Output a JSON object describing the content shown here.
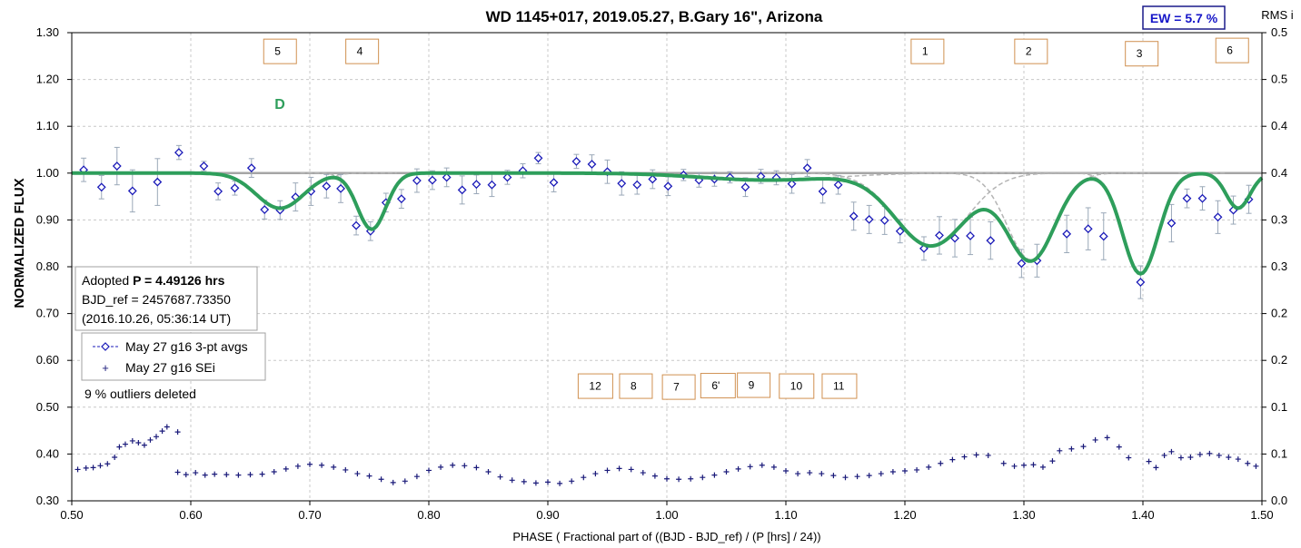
{
  "chart_data": {
    "type": "scatter",
    "title": "WD 1145+017, 2019.05.27, B.Gary 16\", Arizona",
    "xlabel": "PHASE ( Fractional part of ((BJD - BJD_ref) / (P [hrs] / 24))",
    "ylabel": "NORMALIZED FLUX",
    "y2label": "RMS i",
    "xlim": [
      0.5,
      1.5
    ],
    "ylim": [
      0.3,
      1.3
    ],
    "y2lim": [
      0.0,
      0.5
    ],
    "xticks": [
      "0.50",
      "0.60",
      "0.70",
      "0.80",
      "0.90",
      "1.00",
      "1.10",
      "1.20",
      "1.30",
      "1.40",
      "1.50"
    ],
    "yticks": [
      "0.30",
      "0.40",
      "0.50",
      "0.60",
      "0.70",
      "0.80",
      "0.90",
      "1.00",
      "1.10",
      "1.20",
      "1.30"
    ],
    "y2ticks": [
      "0.0",
      "0.1",
      "0.1",
      "0.2",
      "0.2",
      "0.3",
      "0.3",
      "0.4",
      "0.4",
      "0.5",
      "0.5"
    ],
    "grid": true,
    "legend_position": "left-middle",
    "ew_label": "EW =  5.7 %",
    "d_label": "D",
    "info_lines": [
      {
        "prefix": "Adopted ",
        "bold": "P = 4.49126 hrs"
      },
      {
        "prefix": "BJD_ref = 2457687.73350",
        "bold": ""
      },
      {
        "prefix": "(2016.10.26, 05:36:14 UT)",
        "bold": ""
      }
    ],
    "outliers_note": "9 % outliers deleted",
    "colors": {
      "model": "#2e9e5b",
      "points": "#1a1ab8",
      "errorbars": "#9aa8b8",
      "baseline": "#a6a6a6",
      "components": "#b4b4b4",
      "boxes": "#d09050",
      "ew": "#1616c8",
      "sei": "#1a1a7a"
    },
    "series": [
      {
        "name": "May 27 g16 3-pt avgs",
        "points": [
          {
            "x": 0.51,
            "y": 1.007,
            "err": 0.025
          },
          {
            "x": 0.525,
            "y": 0.97,
            "err": 0.025
          },
          {
            "x": 0.538,
            "y": 1.015,
            "err": 0.04
          },
          {
            "x": 0.551,
            "y": 0.962,
            "err": 0.045
          },
          {
            "x": 0.572,
            "y": 0.981,
            "err": 0.05
          },
          {
            "x": 0.59,
            "y": 1.044,
            "err": 0.015
          },
          {
            "x": 0.611,
            "y": 1.015,
            "err": 0.01
          },
          {
            "x": 0.623,
            "y": 0.961,
            "err": 0.018
          },
          {
            "x": 0.637,
            "y": 0.968,
            "err": 0.015
          },
          {
            "x": 0.651,
            "y": 1.011,
            "err": 0.02
          },
          {
            "x": 0.662,
            "y": 0.922,
            "err": 0.02
          },
          {
            "x": 0.675,
            "y": 0.921,
            "err": 0.02
          },
          {
            "x": 0.688,
            "y": 0.949,
            "err": 0.03
          },
          {
            "x": 0.701,
            "y": 0.961,
            "err": 0.03
          },
          {
            "x": 0.714,
            "y": 0.972,
            "err": 0.025
          },
          {
            "x": 0.726,
            "y": 0.967,
            "err": 0.03
          },
          {
            "x": 0.739,
            "y": 0.888,
            "err": 0.02
          },
          {
            "x": 0.751,
            "y": 0.876,
            "err": 0.02
          },
          {
            "x": 0.764,
            "y": 0.937,
            "err": 0.02
          },
          {
            "x": 0.777,
            "y": 0.945,
            "err": 0.02
          },
          {
            "x": 0.79,
            "y": 0.984,
            "err": 0.025
          },
          {
            "x": 0.803,
            "y": 0.985,
            "err": 0.02
          },
          {
            "x": 0.815,
            "y": 0.991,
            "err": 0.02
          },
          {
            "x": 0.828,
            "y": 0.964,
            "err": 0.03
          },
          {
            "x": 0.84,
            "y": 0.976,
            "err": 0.02
          },
          {
            "x": 0.853,
            "y": 0.975,
            "err": 0.025
          },
          {
            "x": 0.866,
            "y": 0.991,
            "err": 0.015
          },
          {
            "x": 0.879,
            "y": 1.005,
            "err": 0.015
          },
          {
            "x": 0.892,
            "y": 1.032,
            "err": 0.012
          },
          {
            "x": 0.905,
            "y": 0.98,
            "err": 0.02
          },
          {
            "x": 0.924,
            "y": 1.025,
            "err": 0.015
          },
          {
            "x": 0.937,
            "y": 1.019,
            "err": 0.02
          },
          {
            "x": 0.95,
            "y": 1.003,
            "err": 0.025
          },
          {
            "x": 0.962,
            "y": 0.978,
            "err": 0.025
          },
          {
            "x": 0.975,
            "y": 0.975,
            "err": 0.02
          },
          {
            "x": 0.988,
            "y": 0.987,
            "err": 0.02
          },
          {
            "x": 1.001,
            "y": 0.972,
            "err": 0.02
          },
          {
            "x": 1.014,
            "y": 0.996,
            "err": 0.012
          },
          {
            "x": 1.027,
            "y": 0.985,
            "err": 0.015
          },
          {
            "x": 1.04,
            "y": 0.987,
            "err": 0.015
          },
          {
            "x": 1.053,
            "y": 0.991,
            "err": 0.012
          },
          {
            "x": 1.066,
            "y": 0.97,
            "err": 0.02
          },
          {
            "x": 1.079,
            "y": 0.993,
            "err": 0.015
          },
          {
            "x": 1.092,
            "y": 0.99,
            "err": 0.015
          },
          {
            "x": 1.105,
            "y": 0.977,
            "err": 0.02
          },
          {
            "x": 1.118,
            "y": 1.011,
            "err": 0.018
          },
          {
            "x": 1.131,
            "y": 0.961,
            "err": 0.025
          },
          {
            "x": 1.144,
            "y": 0.975,
            "err": 0.02
          },
          {
            "x": 1.157,
            "y": 0.908,
            "err": 0.03
          },
          {
            "x": 1.17,
            "y": 0.901,
            "err": 0.03
          },
          {
            "x": 1.183,
            "y": 0.899,
            "err": 0.03
          },
          {
            "x": 1.196,
            "y": 0.876,
            "err": 0.025
          },
          {
            "x": 1.216,
            "y": 0.839,
            "err": 0.025
          },
          {
            "x": 1.229,
            "y": 0.867,
            "err": 0.04
          },
          {
            "x": 1.242,
            "y": 0.861,
            "err": 0.04
          },
          {
            "x": 1.255,
            "y": 0.866,
            "err": 0.04
          },
          {
            "x": 1.272,
            "y": 0.856,
            "err": 0.04
          },
          {
            "x": 1.298,
            "y": 0.807,
            "err": 0.03
          },
          {
            "x": 1.311,
            "y": 0.813,
            "err": 0.035
          },
          {
            "x": 1.336,
            "y": 0.87,
            "err": 0.04
          },
          {
            "x": 1.354,
            "y": 0.881,
            "err": 0.045
          },
          {
            "x": 1.367,
            "y": 0.865,
            "err": 0.05
          },
          {
            "x": 1.398,
            "y": 0.767,
            "err": 0.035
          },
          {
            "x": 1.424,
            "y": 0.893,
            "err": 0.04
          },
          {
            "x": 1.437,
            "y": 0.946,
            "err": 0.02
          },
          {
            "x": 1.45,
            "y": 0.946,
            "err": 0.025
          },
          {
            "x": 1.463,
            "y": 0.906,
            "err": 0.035
          },
          {
            "x": 1.476,
            "y": 0.921,
            "err": 0.03
          },
          {
            "x": 1.489,
            "y": 0.944,
            "err": 0.03
          }
        ]
      },
      {
        "name": "May 27 g16 SEi",
        "points": [
          {
            "x": 0.505,
            "y": 0.367
          },
          {
            "x": 0.512,
            "y": 0.37
          },
          {
            "x": 0.518,
            "y": 0.371
          },
          {
            "x": 0.524,
            "y": 0.375
          },
          {
            "x": 0.53,
            "y": 0.379
          },
          {
            "x": 0.536,
            "y": 0.393
          },
          {
            "x": 0.54,
            "y": 0.415
          },
          {
            "x": 0.545,
            "y": 0.421
          },
          {
            "x": 0.551,
            "y": 0.428
          },
          {
            "x": 0.556,
            "y": 0.424
          },
          {
            "x": 0.561,
            "y": 0.419
          },
          {
            "x": 0.566,
            "y": 0.43
          },
          {
            "x": 0.571,
            "y": 0.437
          },
          {
            "x": 0.576,
            "y": 0.449
          },
          {
            "x": 0.58,
            "y": 0.458
          },
          {
            "x": 0.589,
            "y": 0.447
          },
          {
            "x": 0.589,
            "y": 0.361
          },
          {
            "x": 0.596,
            "y": 0.356
          },
          {
            "x": 0.604,
            "y": 0.36
          },
          {
            "x": 0.612,
            "y": 0.355
          },
          {
            "x": 0.62,
            "y": 0.357
          },
          {
            "x": 0.63,
            "y": 0.356
          },
          {
            "x": 0.64,
            "y": 0.355
          },
          {
            "x": 0.65,
            "y": 0.356
          },
          {
            "x": 0.66,
            "y": 0.357
          },
          {
            "x": 0.67,
            "y": 0.362
          },
          {
            "x": 0.68,
            "y": 0.368
          },
          {
            "x": 0.69,
            "y": 0.374
          },
          {
            "x": 0.7,
            "y": 0.378
          },
          {
            "x": 0.71,
            "y": 0.376
          },
          {
            "x": 0.72,
            "y": 0.372
          },
          {
            "x": 0.73,
            "y": 0.366
          },
          {
            "x": 0.74,
            "y": 0.358
          },
          {
            "x": 0.75,
            "y": 0.353
          },
          {
            "x": 0.76,
            "y": 0.346
          },
          {
            "x": 0.77,
            "y": 0.339
          },
          {
            "x": 0.78,
            "y": 0.342
          },
          {
            "x": 0.79,
            "y": 0.352
          },
          {
            "x": 0.8,
            "y": 0.365
          },
          {
            "x": 0.81,
            "y": 0.372
          },
          {
            "x": 0.82,
            "y": 0.376
          },
          {
            "x": 0.83,
            "y": 0.375
          },
          {
            "x": 0.84,
            "y": 0.371
          },
          {
            "x": 0.85,
            "y": 0.362
          },
          {
            "x": 0.86,
            "y": 0.351
          },
          {
            "x": 0.87,
            "y": 0.344
          },
          {
            "x": 0.88,
            "y": 0.341
          },
          {
            "x": 0.89,
            "y": 0.338
          },
          {
            "x": 0.9,
            "y": 0.34
          },
          {
            "x": 0.91,
            "y": 0.337
          },
          {
            "x": 0.92,
            "y": 0.342
          },
          {
            "x": 0.93,
            "y": 0.35
          },
          {
            "x": 0.94,
            "y": 0.358
          },
          {
            "x": 0.95,
            "y": 0.365
          },
          {
            "x": 0.96,
            "y": 0.369
          },
          {
            "x": 0.97,
            "y": 0.367
          },
          {
            "x": 0.98,
            "y": 0.36
          },
          {
            "x": 0.99,
            "y": 0.353
          },
          {
            "x": 1.0,
            "y": 0.347
          },
          {
            "x": 1.01,
            "y": 0.346
          },
          {
            "x": 1.02,
            "y": 0.347
          },
          {
            "x": 1.03,
            "y": 0.35
          },
          {
            "x": 1.04,
            "y": 0.355
          },
          {
            "x": 1.05,
            "y": 0.362
          },
          {
            "x": 1.06,
            "y": 0.368
          },
          {
            "x": 1.07,
            "y": 0.373
          },
          {
            "x": 1.08,
            "y": 0.376
          },
          {
            "x": 1.09,
            "y": 0.372
          },
          {
            "x": 1.1,
            "y": 0.364
          },
          {
            "x": 1.11,
            "y": 0.358
          },
          {
            "x": 1.12,
            "y": 0.36
          },
          {
            "x": 1.13,
            "y": 0.358
          },
          {
            "x": 1.14,
            "y": 0.354
          },
          {
            "x": 1.15,
            "y": 0.35
          },
          {
            "x": 1.16,
            "y": 0.352
          },
          {
            "x": 1.17,
            "y": 0.354
          },
          {
            "x": 1.18,
            "y": 0.358
          },
          {
            "x": 1.19,
            "y": 0.362
          },
          {
            "x": 1.2,
            "y": 0.364
          },
          {
            "x": 1.21,
            "y": 0.366
          },
          {
            "x": 1.22,
            "y": 0.372
          },
          {
            "x": 1.23,
            "y": 0.38
          },
          {
            "x": 1.24,
            "y": 0.388
          },
          {
            "x": 1.25,
            "y": 0.394
          },
          {
            "x": 1.26,
            "y": 0.398
          },
          {
            "x": 1.27,
            "y": 0.397
          },
          {
            "x": 1.283,
            "y": 0.38
          },
          {
            "x": 1.292,
            "y": 0.374
          },
          {
            "x": 1.3,
            "y": 0.376
          },
          {
            "x": 1.308,
            "y": 0.377
          },
          {
            "x": 1.316,
            "y": 0.372
          },
          {
            "x": 1.324,
            "y": 0.385
          },
          {
            "x": 1.33,
            "y": 0.407
          },
          {
            "x": 1.34,
            "y": 0.411
          },
          {
            "x": 1.35,
            "y": 0.416
          },
          {
            "x": 1.36,
            "y": 0.43
          },
          {
            "x": 1.37,
            "y": 0.435
          },
          {
            "x": 1.38,
            "y": 0.415
          },
          {
            "x": 1.388,
            "y": 0.392
          },
          {
            "x": 1.405,
            "y": 0.384
          },
          {
            "x": 1.411,
            "y": 0.371
          },
          {
            "x": 1.418,
            "y": 0.397
          },
          {
            "x": 1.424,
            "y": 0.405
          },
          {
            "x": 1.432,
            "y": 0.392
          },
          {
            "x": 1.44,
            "y": 0.393
          },
          {
            "x": 1.448,
            "y": 0.399
          },
          {
            "x": 1.456,
            "y": 0.401
          },
          {
            "x": 1.464,
            "y": 0.397
          },
          {
            "x": 1.472,
            "y": 0.393
          },
          {
            "x": 1.48,
            "y": 0.389
          },
          {
            "x": 1.488,
            "y": 0.38
          },
          {
            "x": 1.495,
            "y": 0.374
          }
        ]
      }
    ],
    "model_components": [
      {
        "center": 0.675,
        "depth": 0.075,
        "width": 0.02
      },
      {
        "center": 0.752,
        "depth": 0.12,
        "width": 0.012
      },
      {
        "center": 1.085,
        "depth": 0.015,
        "width": 0.055
      },
      {
        "center": 1.222,
        "depth": 0.155,
        "width": 0.03
      },
      {
        "center": 1.306,
        "depth": 0.185,
        "width": 0.02
      },
      {
        "center": 1.398,
        "depth": 0.215,
        "width": 0.015
      },
      {
        "center": 1.48,
        "depth": 0.075,
        "width": 0.01
      }
    ],
    "feature_labels": [
      {
        "text": "5",
        "x": 0.675,
        "y": 1.26
      },
      {
        "text": "4",
        "x": 0.744,
        "y": 1.26
      },
      {
        "text": "1",
        "x": 1.219,
        "y": 1.26
      },
      {
        "text": "2",
        "x": 1.306,
        "y": 1.26
      },
      {
        "text": "3",
        "x": 1.399,
        "y": 1.255
      },
      {
        "text": "6",
        "x": 1.475,
        "y": 1.262
      },
      {
        "text": "12",
        "x": 0.94,
        "y": 0.545
      },
      {
        "text": "8",
        "x": 0.974,
        "y": 0.545
      },
      {
        "text": "7",
        "x": 1.01,
        "y": 0.543
      },
      {
        "text": "6'",
        "x": 1.043,
        "y": 0.546
      },
      {
        "text": "9",
        "x": 1.073,
        "y": 0.547
      },
      {
        "text": "10",
        "x": 1.109,
        "y": 0.545
      },
      {
        "text": "11",
        "x": 1.145,
        "y": 0.545
      }
    ]
  }
}
